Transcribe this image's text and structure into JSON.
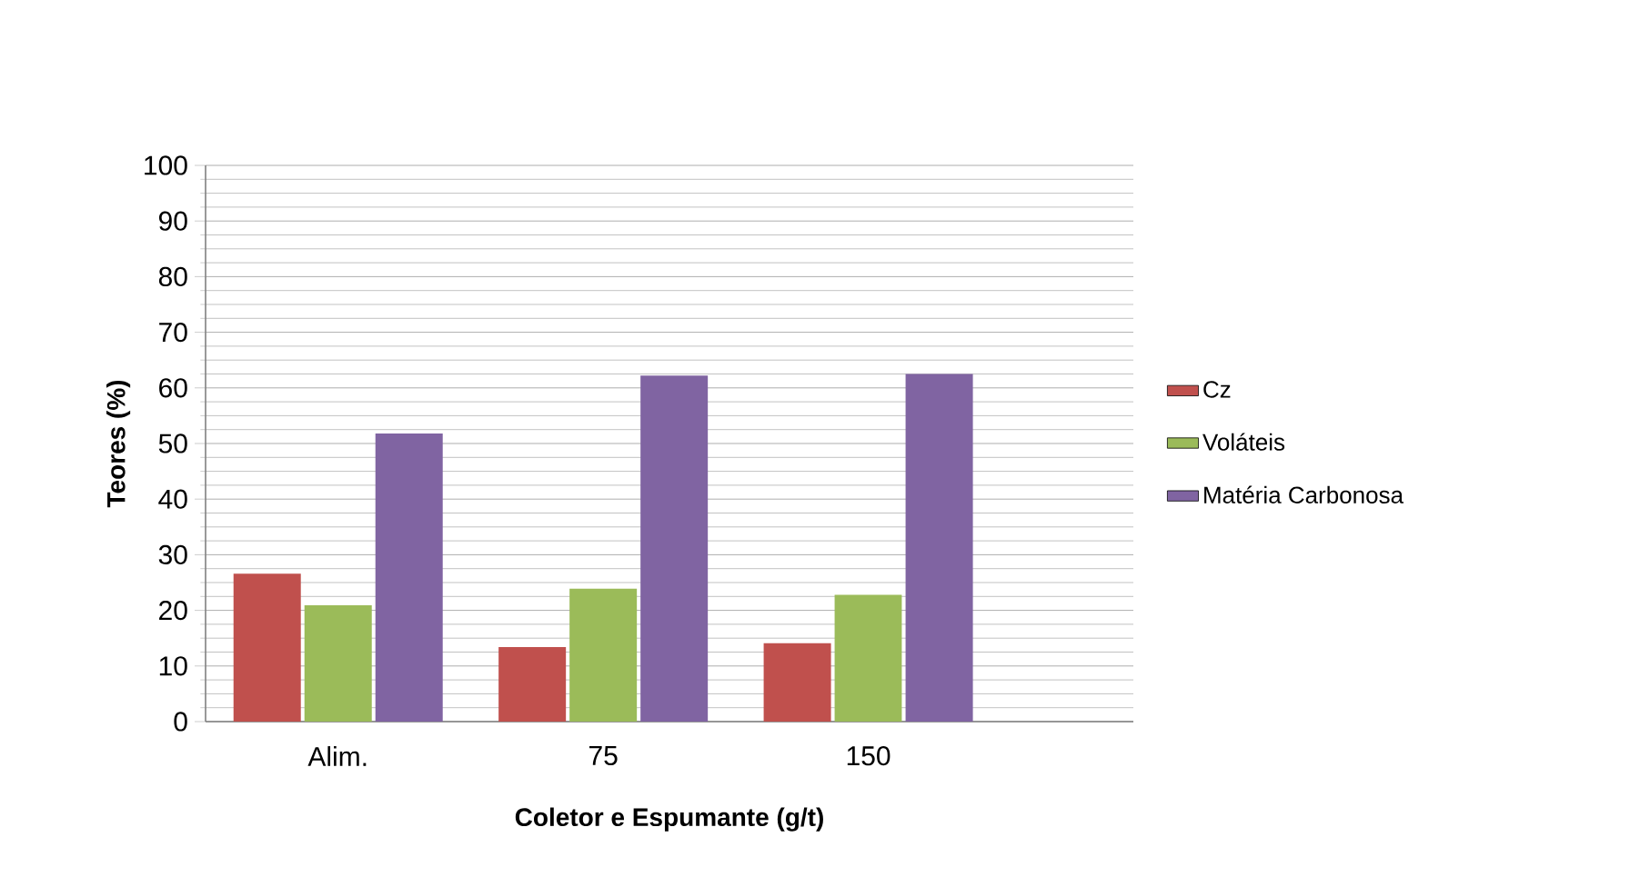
{
  "chart_data": {
    "type": "bar",
    "xlabel": "Coletor e Espumante (g/t)",
    "ylabel": "Teores (%)",
    "categories": [
      "Alim.",
      "75",
      "150"
    ],
    "series": [
      {
        "name": "Cz",
        "color": "#c0504d",
        "values": [
          26.6,
          13.4,
          14.1
        ]
      },
      {
        "name": "Voláteis",
        "color": "#9bbb59",
        "values": [
          20.9,
          23.9,
          22.8
        ]
      },
      {
        "name": "Matéria Carbonosa",
        "color": "#8064a2",
        "values": [
          51.8,
          62.2,
          62.5
        ]
      }
    ],
    "ylim": [
      0,
      100
    ],
    "yticks": [
      0,
      10,
      20,
      30,
      40,
      50,
      60,
      70,
      80,
      90,
      100
    ],
    "grid": "y",
    "legend": "right"
  }
}
